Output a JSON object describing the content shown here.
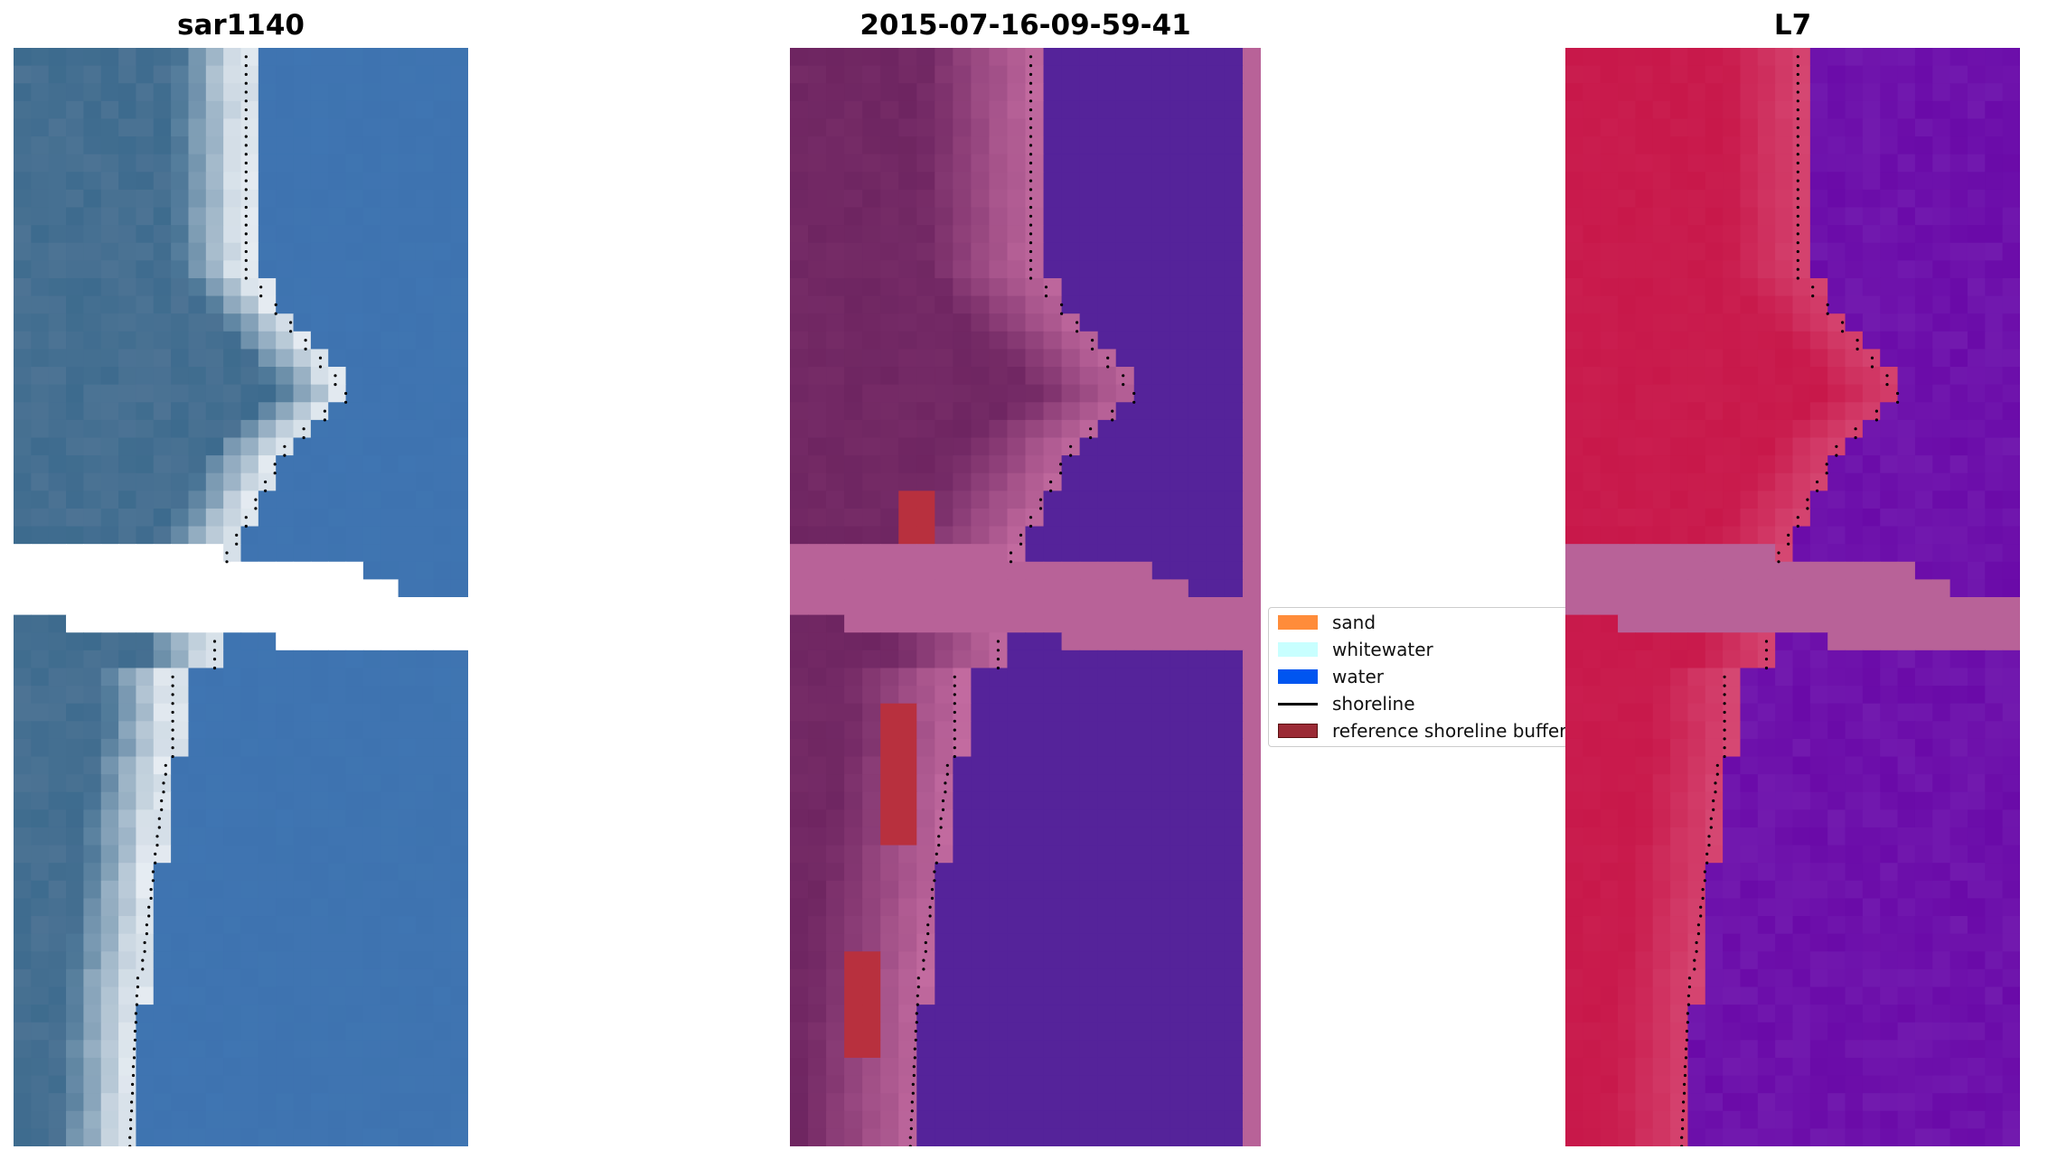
{
  "panels": [
    {
      "title": "sar1140"
    },
    {
      "title": "2015-07-16-09-59-41"
    },
    {
      "title": "L7"
    }
  ],
  "legend": {
    "items": [
      {
        "label": "sand",
        "color": "#ff8c3a",
        "kind": "patch"
      },
      {
        "label": "whitewater",
        "color": "#c8ffff",
        "kind": "patch"
      },
      {
        "label": "water",
        "color": "#0055f0",
        "kind": "patch"
      },
      {
        "label": "shoreline",
        "color": "#000000",
        "kind": "line"
      },
      {
        "label": "reference shoreline buffer",
        "color": "#9b2a35",
        "kind": "patch"
      }
    ]
  },
  "colors": {
    "rgb_land": "#3d6b8e",
    "rgb_sand": "#e6ecf2",
    "rgb_water": "#3e73b0",
    "class_land": "#6e2561",
    "class_water": "#55239a",
    "class_nodata": "#b86298",
    "class_buffer": "#b8303e",
    "ndwi_land": "#c8184a",
    "ndwi_water": "#6a0aa8",
    "ndwi_nodata": "#b86298"
  }
}
